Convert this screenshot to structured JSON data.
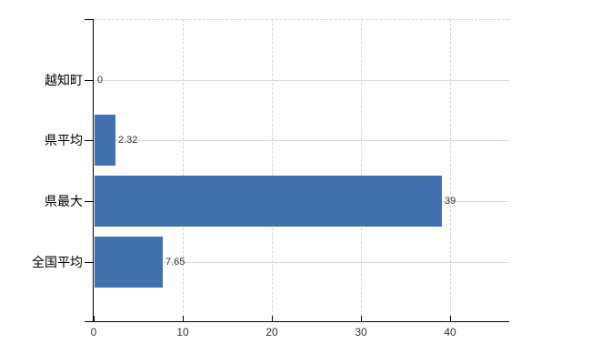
{
  "chart_data": {
    "type": "bar",
    "orientation": "horizontal",
    "title": "",
    "xlabel": "",
    "ylabel": "",
    "categories": [
      "越知町",
      "県平均",
      "県最大",
      "全国平均"
    ],
    "values": [
      0,
      2.32,
      39,
      7.65
    ],
    "value_labels": [
      "0",
      "2.32",
      "39",
      "7.65"
    ],
    "x_ticks": [
      0,
      10,
      20,
      30,
      40
    ],
    "x_tick_labels": [
      "0",
      "10",
      "20",
      "30",
      "40"
    ],
    "xlim": [
      0,
      46.7
    ],
    "grid": true,
    "legend": false,
    "colors": {
      "bar": "#4170ae",
      "axis": "#000000",
      "grid_vertical": "#d4d4d4",
      "grid_horizontal": "#d4ddd4",
      "value_text": "#333333",
      "category_text": "#000000",
      "background": "#ffffff"
    }
  }
}
